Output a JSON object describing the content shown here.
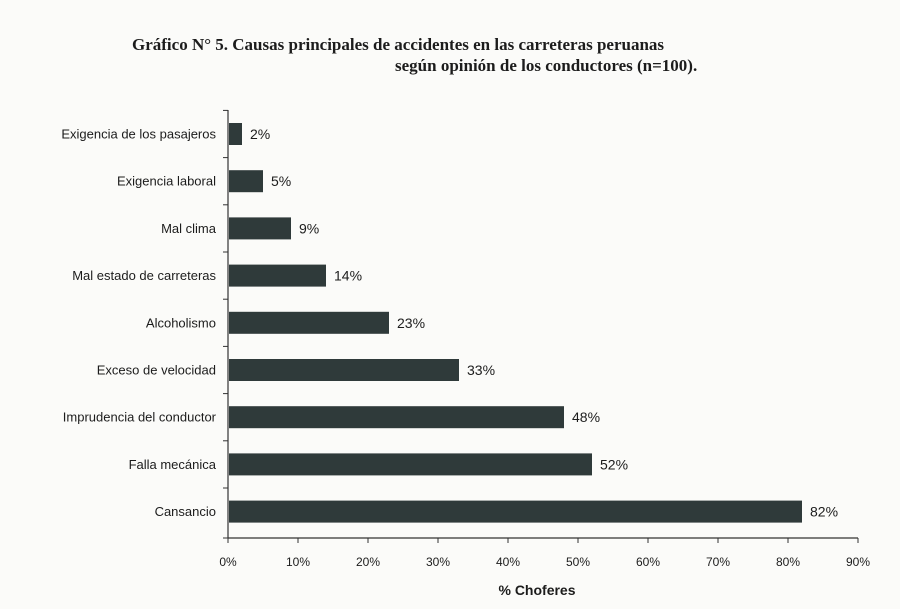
{
  "chart_data": {
    "type": "bar",
    "orientation": "horizontal",
    "title_line1": "Gráfico N° 5. Causas principales de accidentes en las carreteras peruanas",
    "title_line2": "según opinión de los conductores (n=100).",
    "xlabel": "% Choferes",
    "ylabel": "",
    "categories": [
      "Exigencia de los pasajeros",
      "Exigencia laboral",
      "Mal clima",
      "Mal estado de carreteras",
      "Alcoholismo",
      "Exceso de velocidad",
      "Imprudencia del conductor",
      "Falla mecánica",
      "Cansancio"
    ],
    "values": [
      2,
      5,
      9,
      14,
      23,
      33,
      48,
      52,
      82
    ],
    "value_labels": [
      "2%",
      "5%",
      "9%",
      "14%",
      "23%",
      "33%",
      "48%",
      "52%",
      "82%"
    ],
    "xlim": [
      0,
      90
    ],
    "xticks": [
      0,
      10,
      20,
      30,
      40,
      50,
      60,
      70,
      80,
      90
    ],
    "xtick_labels": [
      "0%",
      "10%",
      "20%",
      "30%",
      "40%",
      "50%",
      "60%",
      "70%",
      "80%",
      "90%"
    ],
    "grid": false,
    "legend": "none",
    "bar_color": "#2f3a3a"
  }
}
